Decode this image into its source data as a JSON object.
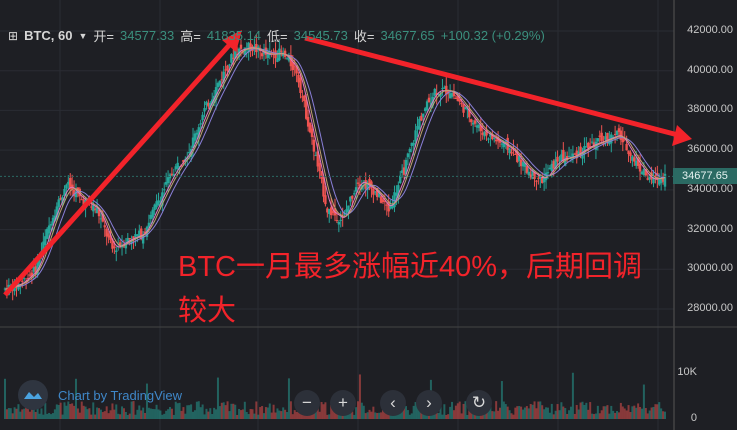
{
  "header": {
    "symbol": "BTC, 60",
    "open_label": "开=",
    "open": "34577.33",
    "high_label": "高=",
    "high": "41835.14",
    "low_label": "低=",
    "low": "34545.73",
    "close_label": "收=",
    "close": "34677.65",
    "change": "+100.32 (+0.29%)"
  },
  "last_price": "34677.65",
  "annotation": "BTC一月最多涨幅近40%，后期回调较大",
  "branding": "Chart by TradingView",
  "controls": {
    "zoom_out": "−",
    "zoom_in": "+",
    "prev": "‹",
    "next": "›",
    "reset": "↻"
  },
  "colors": {
    "up": "#26a69a",
    "down": "#ef5350",
    "arrow": "#f2232a",
    "annotation": "#f2232a",
    "last_price_bg": "#2b6a63"
  },
  "chart_data": {
    "type": "candlestick",
    "title": "BTC, 60",
    "ylim": [
      27000,
      42500
    ],
    "y_ticks": [
      "42000.00",
      "40000.00",
      "38000.00",
      "36000.00",
      "34000.00",
      "32000.00",
      "30000.00",
      "28000.00"
    ],
    "volume_ticks": [
      "10K",
      "0"
    ],
    "grid": true,
    "approx_close": [
      29000,
      29300,
      30000,
      32500,
      34300,
      33500,
      33000,
      31000,
      31500,
      31800,
      33500,
      35000,
      36000,
      38000,
      39500,
      41000,
      41200,
      40800,
      40900,
      40000,
      36500,
      33000,
      32500,
      34500,
      34000,
      33000,
      35000,
      37500,
      39000,
      39000,
      38000,
      37000,
      36500,
      36000,
      35000,
      34500,
      35500,
      35700,
      36200,
      36500,
      36800,
      35500,
      34500,
      34677.65
    ],
    "trend_arrows": [
      {
        "from": 29000,
        "to": 41835.14,
        "label": "up"
      },
      {
        "from": 41500,
        "to": 36300,
        "label": "down"
      }
    ]
  }
}
